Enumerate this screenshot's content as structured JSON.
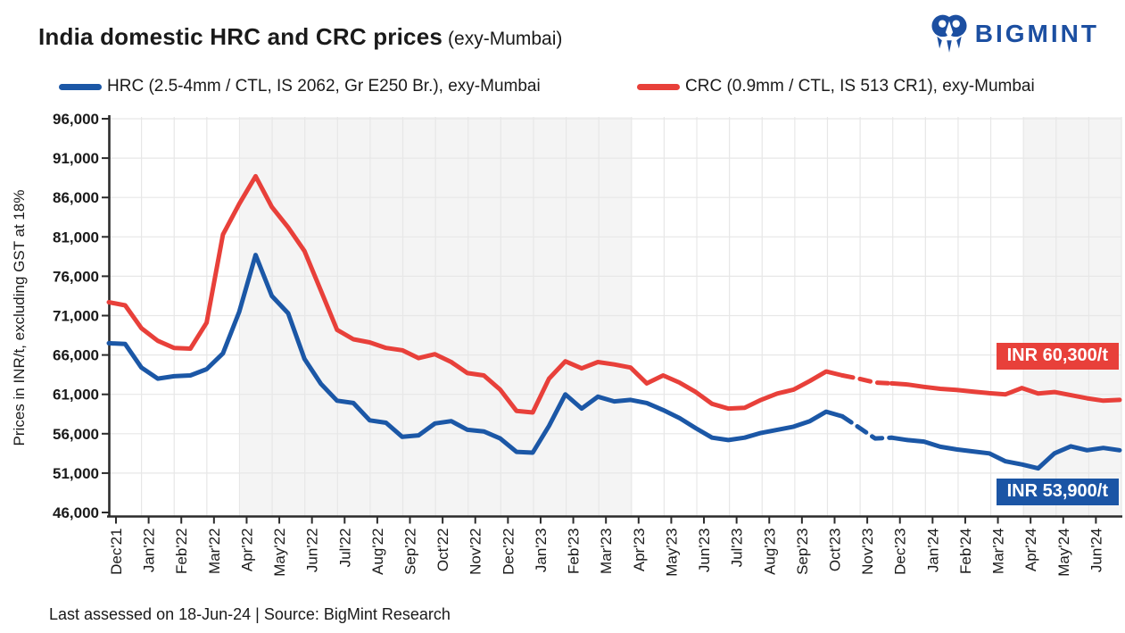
{
  "header": {
    "title": "India domestic HRC and CRC prices",
    "subtitle": "(exy-Mumbai)",
    "brand": "BIGMINT",
    "brand_color": "#1C4FA1"
  },
  "legend": {
    "items": [
      {
        "label": "HRC (2.5-4mm / CTL, IS 2062, Gr E250 Br.), exy-Mumbai",
        "color": "#1B57A6"
      },
      {
        "label": "CRC (0.9mm / CTL, IS 513 CR1), exy-Mumbai",
        "color": "#E8403A"
      }
    ]
  },
  "annotations": [
    {
      "text": "INR 60,300/t",
      "series": "CRC",
      "color": "#E8403A"
    },
    {
      "text": "INR 53,900/t",
      "series": "HRC",
      "color": "#1B55A5"
    }
  ],
  "footer": {
    "text": "Last assessed on 18-Jun-24  |  Source: BigMint Research"
  },
  "chart_data": {
    "type": "line",
    "title": "India domestic HRC and CRC prices (exy-Mumbai)",
    "ylabel": "Prices in INR/t, excluding GST at 18%",
    "ylim": [
      46000,
      96000
    ],
    "ytick_step": 5000,
    "grid": true,
    "legend_position": "top",
    "x_categories": [
      "Dec'21",
      "Jan'22",
      "Feb'22",
      "Mar'22",
      "Apr'22",
      "May'22",
      "Jun'22",
      "Jul'22",
      "Aug'22",
      "Sep'22",
      "Oct'22",
      "Nov'22",
      "Dec'22",
      "Jan'23",
      "Feb'23",
      "Mar'23",
      "Apr'23",
      "May'23",
      "Jun'23",
      "Jul'23",
      "Aug'23",
      "Sep'23",
      "Oct'23",
      "Nov'23",
      "Dec'23",
      "Jan'24",
      "Feb'24",
      "Mar'24",
      "Apr'24",
      "May'24",
      "Jun'24"
    ],
    "points_per_month": 2,
    "dashed_point_range": [
      45,
      48
    ],
    "shaded_bands": [
      {
        "from": "Apr'22",
        "to": "Mar'23",
        "color": "#F4F4F4"
      },
      {
        "from": "Apr'24",
        "to": "Jun'24",
        "color": "#F4F4F4"
      }
    ],
    "series": [
      {
        "name": "CRC (0.9mm / CTL, IS 513 CR1), exy-Mumbai",
        "color": "#E8403A",
        "latest": 60300,
        "values": [
          72700,
          72300,
          69400,
          67800,
          66900,
          66800,
          70100,
          81300,
          85200,
          88700,
          84800,
          82200,
          79200,
          74200,
          69200,
          68000,
          67600,
          66900,
          66600,
          65600,
          66100,
          65100,
          63700,
          63400,
          61600,
          58900,
          58700,
          63000,
          65200,
          64300,
          65100,
          64800,
          64400,
          62400,
          63400,
          62500,
          61300,
          59800,
          59200,
          59300,
          60300,
          61100,
          61600,
          62700,
          63900,
          63400,
          63000,
          62500,
          62400,
          62250,
          61950,
          61700,
          61550,
          61350,
          61150,
          61000,
          61800,
          61100,
          61300,
          60900,
          60500,
          60200,
          60300
        ]
      },
      {
        "name": "HRC (2.5-4mm / CTL, IS 2062, Gr E250 Br.), exy-Mumbai",
        "color": "#1B57A6",
        "latest": 53900,
        "values": [
          67500,
          67400,
          64400,
          63000,
          63300,
          63400,
          64200,
          66200,
          71500,
          78700,
          73500,
          71300,
          65500,
          62350,
          60200,
          59900,
          57700,
          57400,
          55600,
          55800,
          57300,
          57600,
          56500,
          56300,
          55400,
          53700,
          53600,
          57000,
          61000,
          59200,
          60700,
          60100,
          60300,
          59900,
          59000,
          58000,
          56700,
          55500,
          55200,
          55500,
          56100,
          56500,
          56900,
          57600,
          58800,
          58200,
          56800,
          55400,
          55500,
          55200,
          55000,
          54350,
          54000,
          53750,
          53500,
          52500,
          52100,
          51600,
          53500,
          54400,
          53900,
          54200,
          53900
        ]
      }
    ]
  }
}
